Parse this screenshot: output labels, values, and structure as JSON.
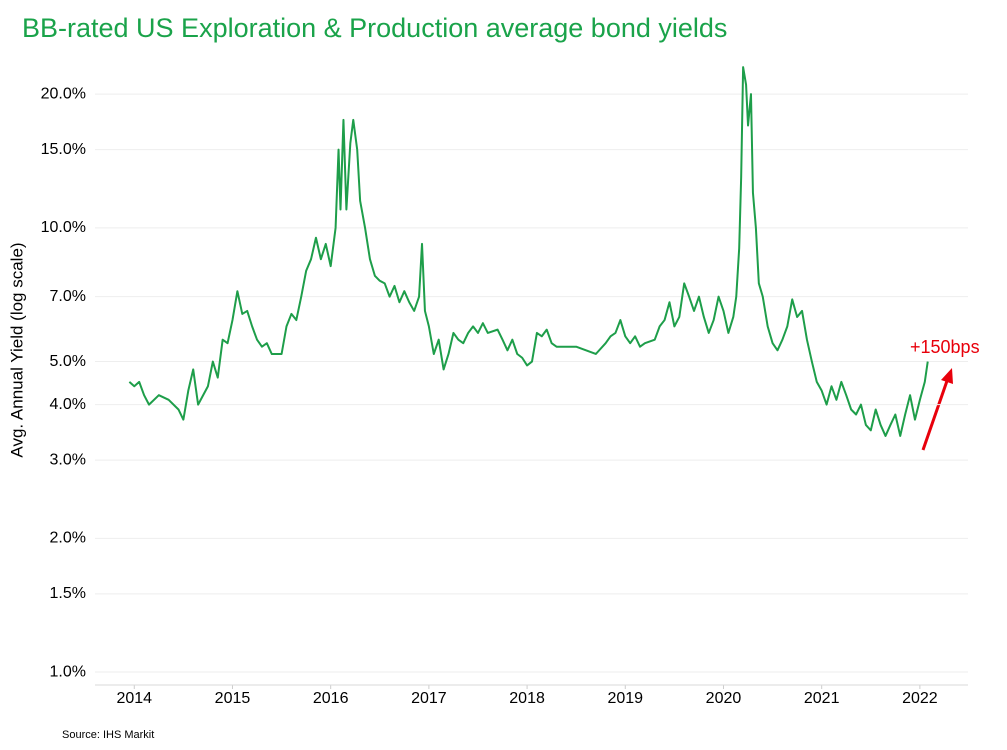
{
  "chart_data": {
    "type": "line",
    "title": "BB-rated US Exploration & Production average bond yields",
    "y_label": "Avg. Annual Yield (log scale)",
    "annotation": "+150bps",
    "source": "Source: IHS Markit",
    "color": "#1e9e4a",
    "log_scale_y": true,
    "grid": true,
    "xlim": [
      2013.6,
      2022.49
    ],
    "xticks": [
      2014,
      2015,
      2016,
      2017,
      2018,
      2019,
      2020,
      2021,
      2022
    ],
    "ylim": [
      0.935,
      25.8
    ],
    "yticks": [
      {
        "value": 1,
        "label": "1.0%"
      },
      {
        "value": 1.5,
        "label": "1.5%"
      },
      {
        "value": 2,
        "label": "2.0%"
      },
      {
        "value": 3,
        "label": "3.0%"
      },
      {
        "value": 4,
        "label": "4.0%"
      },
      {
        "value": 5,
        "label": "5.0%"
      },
      {
        "value": 7,
        "label": "7.0%"
      },
      {
        "value": 10,
        "label": "10.0%"
      },
      {
        "value": 15,
        "label": "15.0%"
      },
      {
        "value": 20,
        "label": "20.0%"
      }
    ],
    "x": [
      2013.95,
      2014.0,
      2014.05,
      2014.1,
      2014.15,
      2014.25,
      2014.35,
      2014.45,
      2014.5,
      2014.55,
      2014.6,
      2014.65,
      2014.75,
      2014.8,
      2014.85,
      2014.9,
      2014.95,
      2015.0,
      2015.05,
      2015.1,
      2015.15,
      2015.2,
      2015.25,
      2015.3,
      2015.35,
      2015.4,
      2015.5,
      2015.55,
      2015.6,
      2015.65,
      2015.7,
      2015.75,
      2015.8,
      2015.85,
      2015.9,
      2015.95,
      2016.0,
      2016.05,
      2016.08,
      2016.1,
      2016.13,
      2016.16,
      2016.2,
      2016.23,
      2016.27,
      2016.3,
      2016.35,
      2016.4,
      2016.45,
      2016.5,
      2016.55,
      2016.6,
      2016.65,
      2016.7,
      2016.75,
      2016.8,
      2016.85,
      2016.9,
      2016.93,
      2016.96,
      2017.0,
      2017.05,
      2017.1,
      2017.15,
      2017.2,
      2017.25,
      2017.3,
      2017.35,
      2017.4,
      2017.45,
      2017.5,
      2017.55,
      2017.6,
      2017.7,
      2017.75,
      2017.8,
      2017.85,
      2017.9,
      2017.95,
      2018.0,
      2018.05,
      2018.1,
      2018.15,
      2018.2,
      2018.25,
      2018.3,
      2018.4,
      2018.5,
      2018.6,
      2018.7,
      2018.8,
      2018.85,
      2018.9,
      2018.95,
      2019.0,
      2019.05,
      2019.1,
      2019.15,
      2019.2,
      2019.3,
      2019.35,
      2019.4,
      2019.45,
      2019.5,
      2019.55,
      2019.6,
      2019.65,
      2019.7,
      2019.75,
      2019.8,
      2019.85,
      2019.9,
      2019.95,
      2020.0,
      2020.05,
      2020.1,
      2020.13,
      2020.16,
      2020.18,
      2020.2,
      2020.23,
      2020.25,
      2020.28,
      2020.3,
      2020.33,
      2020.36,
      2020.4,
      2020.45,
      2020.5,
      2020.55,
      2020.6,
      2020.65,
      2020.7,
      2020.75,
      2020.8,
      2020.85,
      2020.9,
      2020.95,
      2021.0,
      2021.05,
      2021.1,
      2021.15,
      2021.2,
      2021.25,
      2021.3,
      2021.35,
      2021.4,
      2021.45,
      2021.5,
      2021.55,
      2021.6,
      2021.65,
      2021.7,
      2021.75,
      2021.8,
      2021.85,
      2021.9,
      2021.95,
      2022.0,
      2022.05,
      2022.08
    ],
    "values": [
      4.5,
      4.4,
      4.5,
      4.2,
      4.0,
      4.2,
      4.1,
      3.9,
      3.7,
      4.3,
      4.8,
      4.0,
      4.4,
      5.0,
      4.6,
      5.6,
      5.5,
      6.2,
      7.2,
      6.4,
      6.5,
      6.0,
      5.6,
      5.4,
      5.5,
      5.2,
      5.2,
      6.0,
      6.4,
      6.2,
      7.0,
      8.0,
      8.5,
      9.5,
      8.5,
      9.2,
      8.2,
      10.0,
      15.0,
      11.0,
      17.5,
      11.0,
      15.5,
      17.5,
      15.0,
      11.5,
      10.0,
      8.5,
      7.8,
      7.6,
      7.5,
      7.0,
      7.4,
      6.8,
      7.2,
      6.8,
      6.5,
      7.0,
      9.2,
      6.5,
      6.0,
      5.2,
      5.6,
      4.8,
      5.2,
      5.8,
      5.6,
      5.5,
      5.8,
      6.0,
      5.8,
      6.1,
      5.8,
      5.9,
      5.6,
      5.3,
      5.6,
      5.2,
      5.1,
      4.9,
      5.0,
      5.8,
      5.7,
      5.9,
      5.5,
      5.4,
      5.4,
      5.4,
      5.3,
      5.2,
      5.5,
      5.7,
      5.8,
      6.2,
      5.7,
      5.5,
      5.7,
      5.4,
      5.5,
      5.6,
      6.0,
      6.2,
      6.8,
      6.0,
      6.3,
      7.5,
      7.0,
      6.5,
      7.0,
      6.3,
      5.8,
      6.2,
      7.0,
      6.5,
      5.8,
      6.3,
      7.0,
      9.0,
      13.0,
      23.0,
      21.0,
      17.0,
      20.0,
      12.0,
      10.0,
      7.5,
      7.0,
      6.0,
      5.5,
      5.3,
      5.6,
      6.0,
      6.9,
      6.3,
      6.5,
      5.6,
      5.0,
      4.5,
      4.3,
      4.0,
      4.4,
      4.1,
      4.5,
      4.2,
      3.9,
      3.8,
      4.0,
      3.6,
      3.5,
      3.9,
      3.6,
      3.4,
      3.6,
      3.8,
      3.4,
      3.8,
      4.2,
      3.7,
      4.1,
      4.5,
      5.0
    ]
  }
}
